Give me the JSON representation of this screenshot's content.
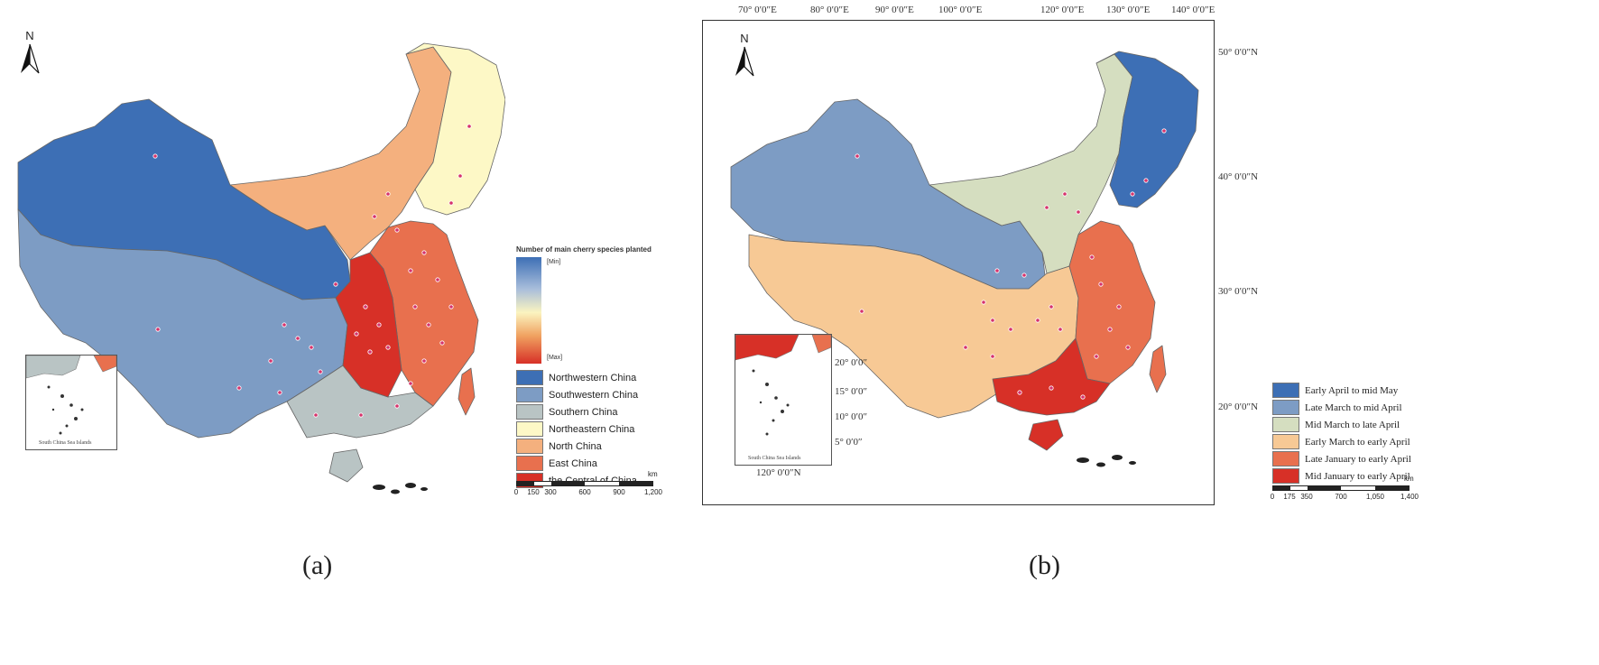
{
  "panel_a": {
    "north_label": "N",
    "legend_title": "Number of main cherry  species planted",
    "gradient_min": "[Min]",
    "gradient_max": "[Max]",
    "legend_items": [
      {
        "label": "Northwestern China",
        "color": "#3d6fb5"
      },
      {
        "label": "Southwestern China",
        "color": "#7d9cc4"
      },
      {
        "label": "Southern China",
        "color": "#b9c4c4"
      },
      {
        "label": "Northeastern China",
        "color": "#fdf8c6"
      },
      {
        "label": "North China",
        "color": "#f4b07e"
      },
      {
        "label": "East China",
        "color": "#e8704e"
      },
      {
        "label": "the Central of China",
        "color": "#d73027"
      }
    ],
    "scale_unit": "km",
    "scale_ticks": [
      "0",
      "150",
      "300",
      "600",
      "900",
      "1,200"
    ],
    "inset_label": "South China Sea Islands",
    "caption": "(a)"
  },
  "panel_b": {
    "north_label": "N",
    "top_coords": [
      "70° 0′0″E",
      "80° 0′0″E",
      "90° 0′0″E",
      "100° 0′0″E",
      "120° 0′0″E",
      "130° 0′0″E",
      "140° 0′0″E"
    ],
    "right_coords": [
      "50° 0′0″N",
      "40° 0′0″N",
      "30° 0′0″N",
      "20° 0′0″N"
    ],
    "inset_coords": [
      "20° 0′0″",
      "15° 0′0″",
      "10° 0′0″",
      "5° 0′0″"
    ],
    "inset_bottom_coord": "120° 0′0″N",
    "inset_label": "South China Sea Islands",
    "legend_items": [
      {
        "label": "Early April to mid May",
        "color": "#3d6fb5"
      },
      {
        "label": "Late March to mid April",
        "color": "#7d9cc4"
      },
      {
        "label": "Mid March to late April",
        "color": "#d5dec0"
      },
      {
        "label": "Early March to early April",
        "color": "#f7c995"
      },
      {
        "label": "Late January to early April",
        "color": "#e8704e"
      },
      {
        "label": "Mid January to early April",
        "color": "#d73027"
      }
    ],
    "scale_unit": "km",
    "scale_ticks": [
      "0",
      "175",
      "350",
      "700",
      "1,050",
      "1,400"
    ],
    "caption": "(b)"
  },
  "colors": {
    "point_fill": "#d6336c",
    "border_line": "#555555",
    "islands": "#222222"
  }
}
